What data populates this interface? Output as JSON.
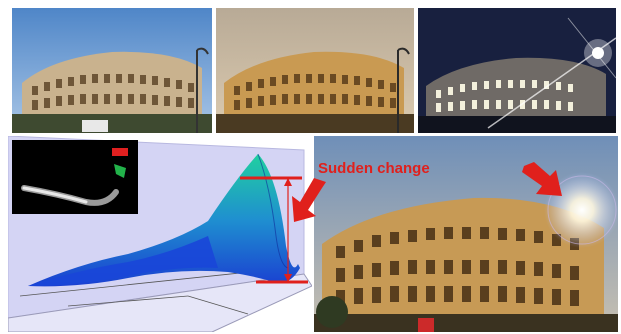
{
  "annotation": {
    "label": "Sudden change",
    "color": "#e0201c"
  },
  "panels": [
    {
      "name": "colosseum-daylight",
      "sky": "#7fa8d8"
    },
    {
      "name": "colosseum-dusk",
      "sky": "#c9b9a0"
    },
    {
      "name": "colosseum-night",
      "sky": "#1c2448"
    },
    {
      "name": "surface-plot-with-mask-inset"
    },
    {
      "name": "colosseum-composite-with-flare"
    }
  ],
  "icons": [
    "red-arrow-icon",
    "red-arrow-icon"
  ]
}
